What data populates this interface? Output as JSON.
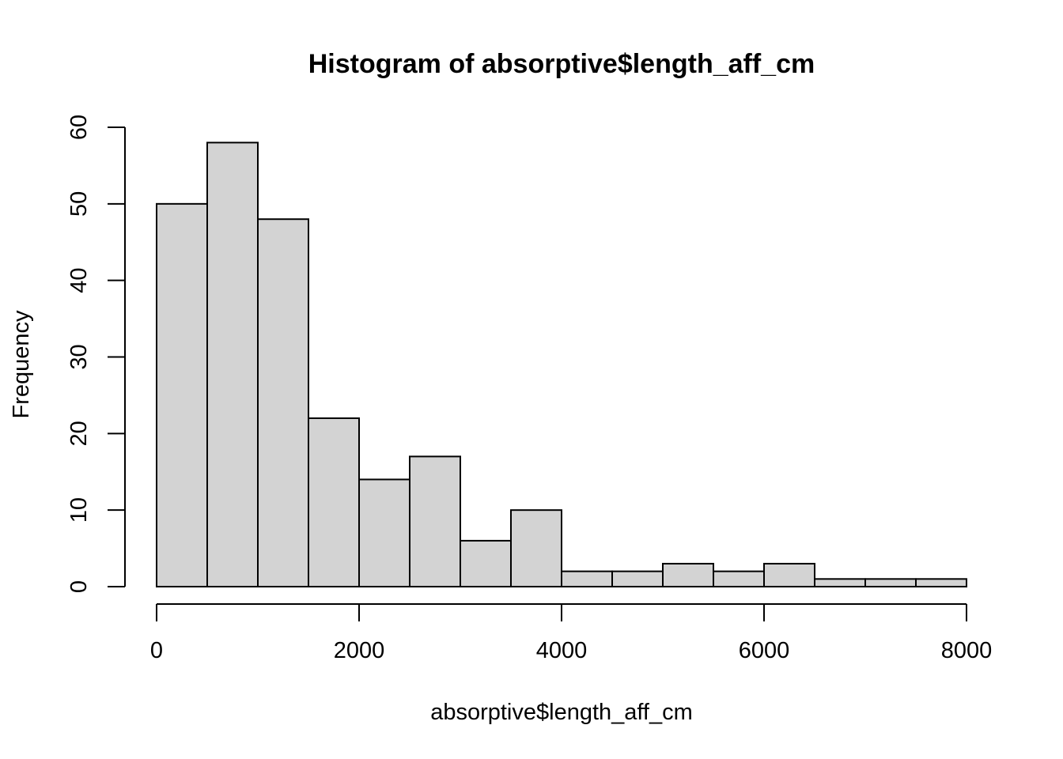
{
  "chart_data": {
    "type": "bar",
    "title": "Histogram of absorptive$length_aff_cm",
    "xlabel": "absorptive$length_aff_cm",
    "ylabel": "Frequency",
    "bin_edges": [
      0,
      500,
      1000,
      1500,
      2000,
      2500,
      3000,
      3500,
      4000,
      4500,
      5000,
      5500,
      6000,
      6500,
      7000,
      7500,
      8000
    ],
    "values": [
      50,
      58,
      48,
      22,
      14,
      17,
      6,
      10,
      2,
      2,
      3,
      2,
      3,
      1,
      1,
      1
    ],
    "xlim": [
      0,
      8000
    ],
    "ylim": [
      0,
      60
    ],
    "x_ticks": [
      "0",
      "2000",
      "4000",
      "6000",
      "8000"
    ],
    "y_ticks": [
      "0",
      "10",
      "20",
      "30",
      "40",
      "50",
      "60"
    ],
    "grid": false,
    "colors": {
      "bar_fill": "#d3d3d3",
      "bar_stroke": "#000000"
    }
  }
}
